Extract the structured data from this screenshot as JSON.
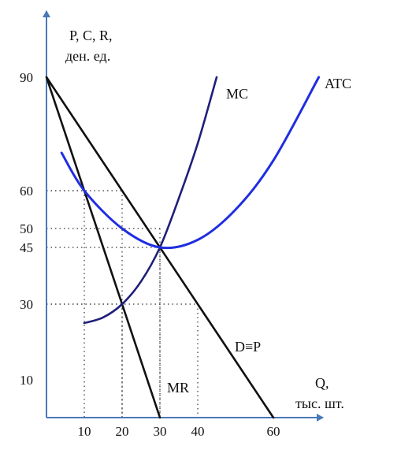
{
  "chart_data": {
    "type": "line",
    "ylabel_line1": "P, C, R,",
    "ylabel_line2": "ден. ед.",
    "xlabel_line1": "Q,",
    "xlabel_line2": "тыс. шт.",
    "xlim": [
      0,
      60
    ],
    "ylim": [
      0,
      90
    ],
    "x_ticks": [
      10,
      20,
      30,
      40,
      60
    ],
    "y_ticks": [
      10,
      30,
      45,
      50,
      60,
      90
    ],
    "series": [
      {
        "name": "D≡P",
        "color": "#111111",
        "x": [
          0,
          60
        ],
        "y": [
          90,
          0
        ]
      },
      {
        "name": "MR",
        "color": "#111111",
        "x": [
          0,
          30
        ],
        "y": [
          90,
          0
        ]
      },
      {
        "name": "MC",
        "color": "#1f1f7a",
        "x": [
          10,
          15,
          20,
          25,
          30,
          35,
          40,
          45
        ],
        "y": [
          25,
          26.5,
          30,
          36,
          45,
          58,
          72.5,
          90
        ]
      },
      {
        "name": "ATC",
        "color": "#1f2ee0",
        "x": [
          4,
          10,
          20,
          30,
          40,
          50,
          60,
          72
        ],
        "y": [
          70,
          60,
          50,
          45,
          47,
          55,
          68,
          90
        ]
      }
    ],
    "guides": [
      {
        "x": 10,
        "y": 60
      },
      {
        "x": 20,
        "y": 60
      },
      {
        "x": 20,
        "y": 30
      },
      {
        "x": 30,
        "y": 45
      },
      {
        "x": 30,
        "y": 50
      },
      {
        "x": 40,
        "y": 30
      }
    ]
  }
}
